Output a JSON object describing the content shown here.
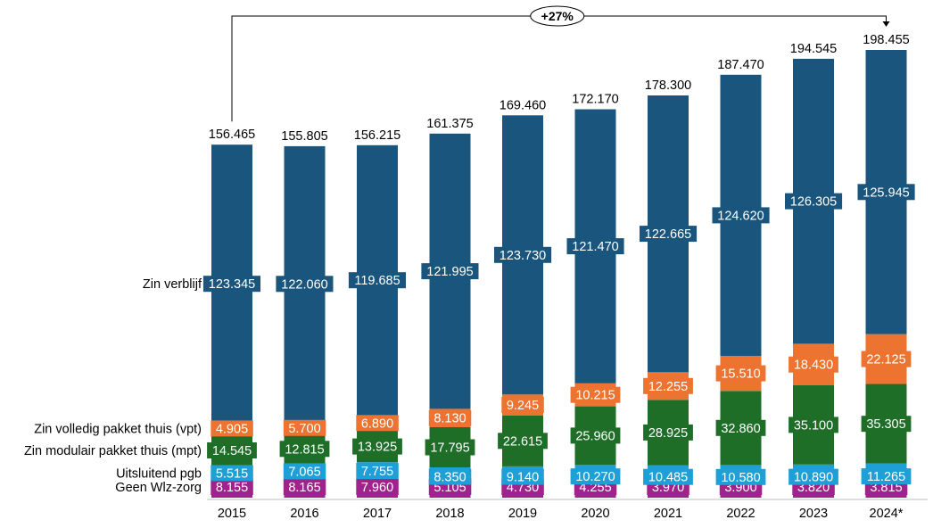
{
  "chart_data": {
    "type": "bar",
    "stacked": true,
    "categories": [
      "2015",
      "2016",
      "2017",
      "2018",
      "2019",
      "2020",
      "2021",
      "2022",
      "2023",
      "2024*"
    ],
    "series": [
      {
        "name": "Geen Wlz-zorg",
        "color": "#a0238c",
        "labels": [
          "8.155",
          "8.165",
          "7.960",
          "5.105",
          "4.730",
          "4.255",
          "3.970",
          "3.900",
          "3.820",
          "3.815"
        ]
      },
      {
        "name": "Uitsluitend pgb",
        "color": "#1ea0d7",
        "labels": [
          "5.515",
          "7.065",
          "7.755",
          "8.350",
          "9.140",
          "10.270",
          "10.485",
          "10.580",
          "10.890",
          "11.265"
        ]
      },
      {
        "name": "Zin modulair pakket thuis (mpt)",
        "color": "#1e6e28",
        "labels": [
          "14.545",
          "12.815",
          "13.925",
          "17.795",
          "22.615",
          "25.960",
          "28.925",
          "32.860",
          "35.100",
          "35.305"
        ]
      },
      {
        "name": "Zin volledig pakket thuis (vpt)",
        "color": "#ec7330",
        "labels": [
          "4.905",
          "5.700",
          "6.890",
          "8.130",
          "9.245",
          "10.215",
          "12.255",
          "15.510",
          "18.430",
          "22.125"
        ]
      },
      {
        "name": "Zin verblijf",
        "color": "#19557d",
        "labels": [
          "123.345",
          "122.060",
          "119.685",
          "121.995",
          "123.730",
          "121.470",
          "122.665",
          "124.620",
          "126.305",
          "125.945"
        ]
      }
    ],
    "totals": [
      "156.465",
      "155.805",
      "156.215",
      "161.375",
      "169.460",
      "172.170",
      "178.300",
      "187.470",
      "194.545",
      "198.455"
    ],
    "annotation": {
      "label": "+27%",
      "from": "2015",
      "to": "2024*"
    },
    "ylim": [
      0,
      198455
    ],
    "title": "",
    "xlabel": "",
    "ylabel": ""
  }
}
